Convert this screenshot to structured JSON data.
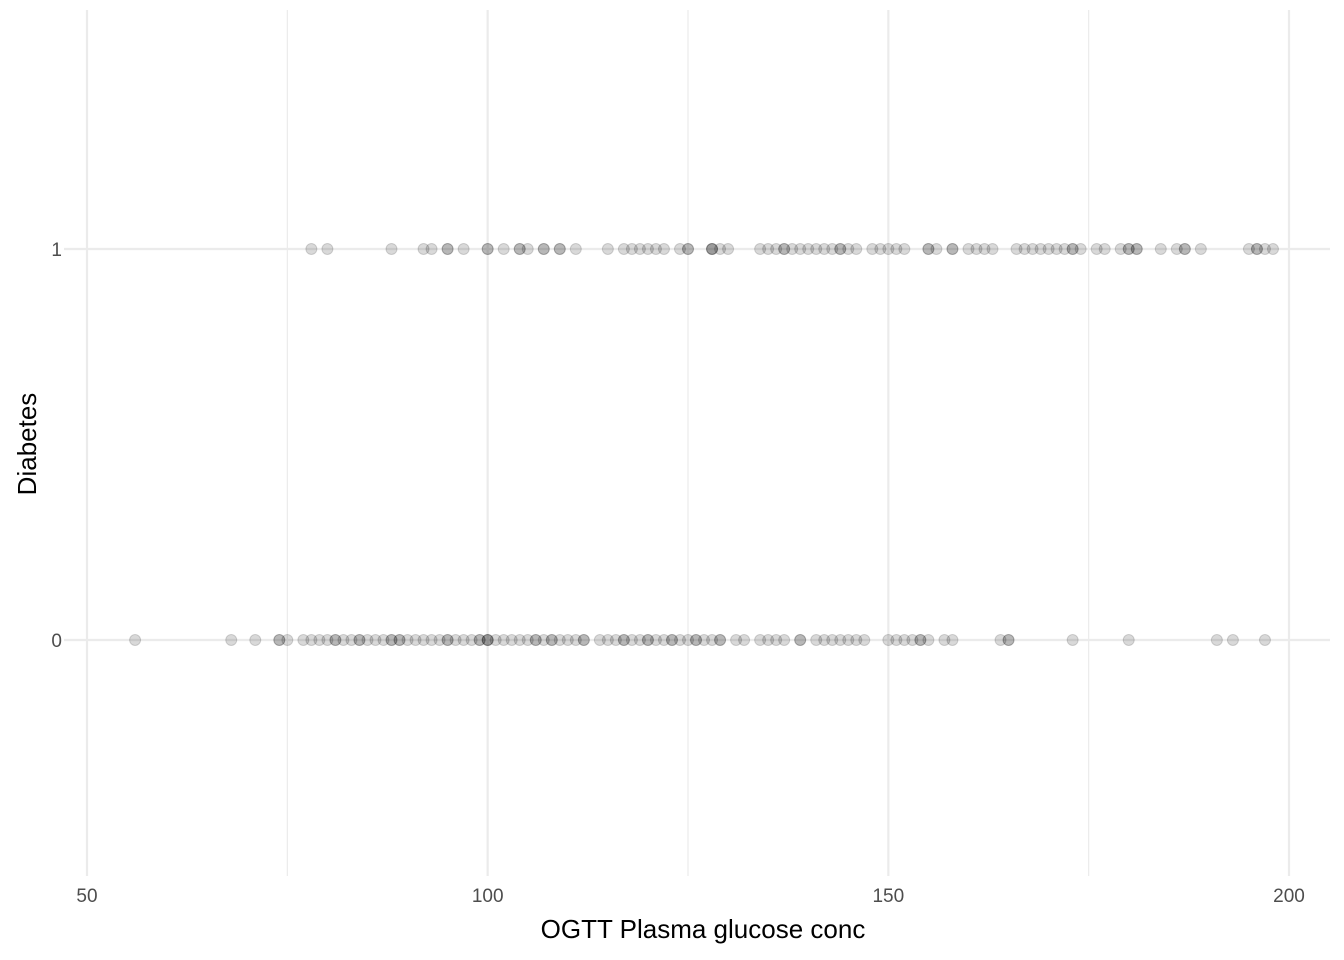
{
  "chart_data": {
    "type": "scatter",
    "title": "",
    "xlabel": "OGTT Plasma glucose conc",
    "ylabel": "Diabetes",
    "xlim": [
      50,
      201
    ],
    "ylim": [
      -0.6,
      1.6
    ],
    "x_ticks": [
      50,
      100,
      150,
      200
    ],
    "y_ticks": [
      0,
      1
    ],
    "grid": true,
    "point_color": "#000000",
    "point_alpha": 0.15,
    "series": [
      {
        "y": 1,
        "x": [
          78,
          80,
          88,
          92,
          93,
          95,
          95,
          97,
          100,
          100,
          102,
          104,
          104,
          105,
          107,
          107,
          109,
          109,
          111,
          115,
          117,
          118,
          119,
          120,
          121,
          122,
          124,
          125,
          125,
          128,
          128,
          128,
          129,
          130,
          134,
          135,
          136,
          137,
          137,
          138,
          139,
          140,
          141,
          142,
          143,
          144,
          144,
          145,
          146,
          148,
          149,
          150,
          151,
          152,
          155,
          155,
          156,
          158,
          158,
          160,
          161,
          162,
          163,
          166,
          167,
          168,
          169,
          170,
          171,
          172,
          173,
          173,
          174,
          176,
          177,
          179,
          180,
          180,
          181,
          181,
          184,
          186,
          187,
          187,
          189,
          195,
          196,
          196,
          197,
          198
        ]
      },
      {
        "y": 0,
        "x": [
          56,
          68,
          71,
          74,
          74,
          75,
          77,
          78,
          79,
          80,
          81,
          81,
          82,
          83,
          84,
          84,
          85,
          86,
          87,
          88,
          88,
          89,
          89,
          90,
          91,
          92,
          93,
          94,
          95,
          95,
          96,
          97,
          98,
          99,
          99,
          100,
          100,
          100,
          101,
          102,
          103,
          104,
          105,
          106,
          106,
          107,
          108,
          108,
          109,
          110,
          111,
          112,
          112,
          114,
          115,
          116,
          117,
          117,
          118,
          119,
          120,
          120,
          121,
          122,
          123,
          123,
          124,
          125,
          126,
          126,
          127,
          128,
          129,
          129,
          131,
          132,
          134,
          135,
          136,
          137,
          139,
          139,
          141,
          142,
          143,
          144,
          145,
          146,
          147,
          150,
          151,
          152,
          153,
          154,
          154,
          155,
          157,
          158,
          164,
          165,
          165,
          173,
          180,
          191,
          193,
          197
        ]
      }
    ]
  }
}
